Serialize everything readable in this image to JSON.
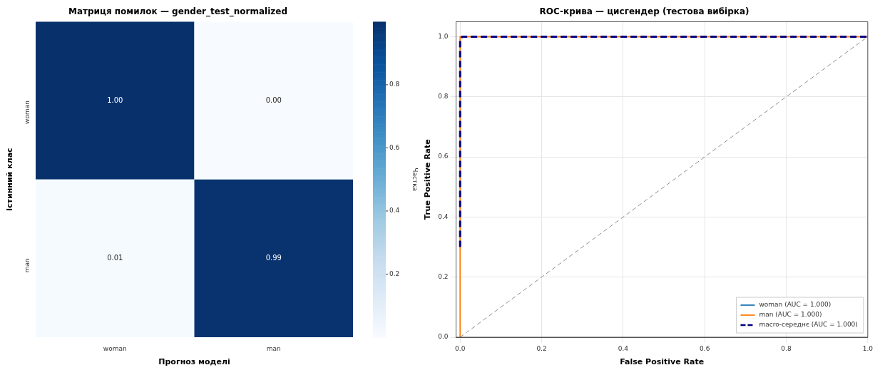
{
  "chart_data": [
    {
      "type": "heatmap",
      "title": "Матриця помилок — gender_test_normalized",
      "xlabel": "Прогноз моделі",
      "ylabel": "Істинний клас",
      "clabel": "Частка",
      "categories": [
        "woman",
        "man"
      ],
      "y_categories": [
        "woman",
        "man"
      ],
      "cells": [
        [
          1.0,
          0.0
        ],
        [
          0.01,
          0.99
        ]
      ],
      "cell_labels": [
        [
          "1.00",
          "0.00"
        ],
        [
          "0.01",
          "0.99"
        ]
      ],
      "clim": [
        0,
        1
      ],
      "cticks": [
        0.2,
        0.4,
        0.6,
        0.8
      ]
    },
    {
      "type": "line",
      "title": "ROC-крива — цисгендер (тестова вибірка)",
      "xlabel": "False Positive Rate",
      "ylabel": "True Positive Rate",
      "series": [
        {
          "name": "woman (AUC = 1.000)",
          "color": "#1f77b4",
          "line_style": "solid"
        },
        {
          "name": "man (AUC = 1.000)",
          "color": "#ff7f0e",
          "x": [
            0,
            0,
            1
          ],
          "values": [
            0,
            1,
            1
          ],
          "line_style": "solid"
        },
        {
          "name": "macro-середнє (AUC = 1.000)",
          "color": "#000080",
          "x": [
            0,
            0,
            0.005,
            1
          ],
          "values": [
            0.3,
            0.99,
            1,
            1
          ],
          "line_style": "dashed"
        },
        {
          "color": "#808080",
          "x": [
            0,
            1
          ],
          "values": [
            0,
            1
          ],
          "line_style": "dashed"
        }
      ],
      "xlim": [
        -0.01,
        1.0
      ],
      "ylim": [
        0,
        1.05
      ],
      "xticks": [
        {
          "value": 0,
          "label": "0.0"
        },
        0.2,
        0.4,
        0.6,
        0.8,
        {
          "value": 1,
          "label": "1.0"
        }
      ],
      "yticks": [
        {
          "value": 0,
          "label": "0.0"
        },
        0.2,
        0.4,
        0.6,
        0.8,
        {
          "value": 1,
          "label": "1.0"
        }
      ],
      "grid": true,
      "legend": "bottom right"
    }
  ]
}
